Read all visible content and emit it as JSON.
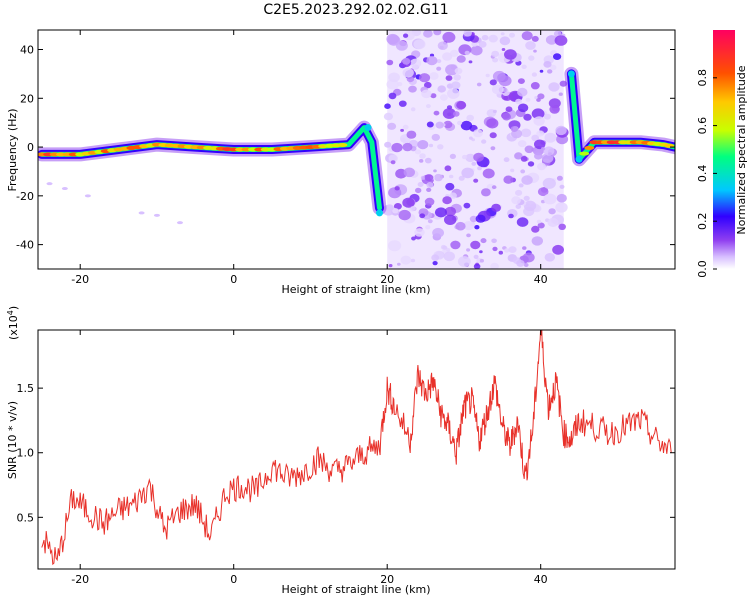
{
  "title": "C2E5.2023.292.02.02.G11",
  "colors": {
    "snr_line": "#e8312a",
    "spectrogram_ridge_low": "#5a00e0",
    "spectrogram_ridge_high": "#ff2000",
    "spectrogram_noise": "#8a2be2"
  },
  "chart_data": [
    {
      "type": "heatmap",
      "name": "spectrogram",
      "xlabel": "Height of straight line (km)",
      "ylabel": "Frequency (Hz)",
      "xlim": [
        -25.5,
        57.5
      ],
      "ylim": [
        -50,
        48
      ],
      "xticks": [
        -20,
        0,
        20,
        40
      ],
      "yticks": [
        -40,
        -20,
        0,
        20,
        40
      ],
      "colorbar": {
        "label": "Normalized spectral amplitude",
        "range": [
          0,
          1
        ],
        "ticks": [
          "0.0",
          "0.2",
          "0.4",
          "0.6",
          "0.8"
        ],
        "colormap": [
          "#ffffff",
          "#c8a8f8",
          "#8a2be2",
          "#3000ff",
          "#00c8ff",
          "#00ff80",
          "#c8ff00",
          "#ffc800",
          "#ff6000",
          "#ff0060"
        ]
      },
      "ridge": {
        "x": [
          -25,
          -20,
          -15,
          -10,
          -5,
          0,
          5,
          10,
          15,
          17,
          18,
          19
        ],
        "freq": [
          -3,
          -3,
          -1,
          1,
          0,
          -1,
          -1,
          0,
          1,
          8,
          2,
          -25
        ],
        "amplitude": [
          0.9,
          0.8,
          0.85,
          0.8,
          0.85,
          0.9,
          0.8,
          0.9,
          0.7,
          0.4,
          0.35,
          0.4
        ]
      },
      "ridge_right": {
        "x": [
          44,
          45,
          47,
          50,
          53,
          56,
          57.5
        ],
        "freq": [
          30,
          -5,
          2,
          2,
          2,
          1,
          0
        ],
        "amplitude": [
          0.4,
          0.5,
          0.9,
          0.9,
          0.85,
          0.8,
          0.8
        ]
      },
      "noise_region": {
        "x": [
          20,
          43
        ],
        "freq": [
          -50,
          46
        ],
        "amplitude": [
          0.05,
          0.2
        ]
      }
    },
    {
      "type": "line",
      "name": "snr",
      "xlabel": "Height of straight line (km)",
      "ylabel": "SNR (10 * v/v)",
      "y_scale_label": "(x10",
      "y_scale_exp": "4",
      "y_scale_close": ")",
      "xlim": [
        -25.5,
        57.5
      ],
      "ylim": [
        0.1,
        1.95
      ],
      "xticks": [
        -20,
        0,
        20,
        40
      ],
      "yticks": [
        "0.5",
        "1.0",
        "1.5"
      ],
      "ytick_values": [
        0.5,
        1.0,
        1.5
      ],
      "x": [
        -25,
        -23,
        -21,
        -19,
        -17,
        -15,
        -13,
        -11,
        -9,
        -7,
        -5,
        -3,
        -1,
        1,
        3,
        5,
        7,
        9,
        11,
        13,
        15,
        17,
        19,
        20,
        21,
        23,
        24,
        25,
        26,
        27,
        28,
        29,
        30,
        31,
        32,
        33,
        34,
        35,
        36,
        37,
        38,
        39,
        40,
        41,
        42,
        43,
        44,
        45,
        47,
        49,
        51,
        53,
        55,
        57
      ],
      "y": [
        0.35,
        0.15,
        0.65,
        0.55,
        0.45,
        0.55,
        0.6,
        0.75,
        0.4,
        0.55,
        0.6,
        0.35,
        0.7,
        0.75,
        0.7,
        0.9,
        0.8,
        0.85,
        0.95,
        0.85,
        0.9,
        1.0,
        1.05,
        1.5,
        1.35,
        1.1,
        1.6,
        1.45,
        1.55,
        1.3,
        1.2,
        1.0,
        1.35,
        1.4,
        1.1,
        1.3,
        1.55,
        1.2,
        1.05,
        1.25,
        0.8,
        1.2,
        1.95,
        1.35,
        1.55,
        1.15,
        1.1,
        1.25,
        1.2,
        1.15,
        1.2,
        1.25,
        1.1,
        1.0
      ]
    }
  ]
}
